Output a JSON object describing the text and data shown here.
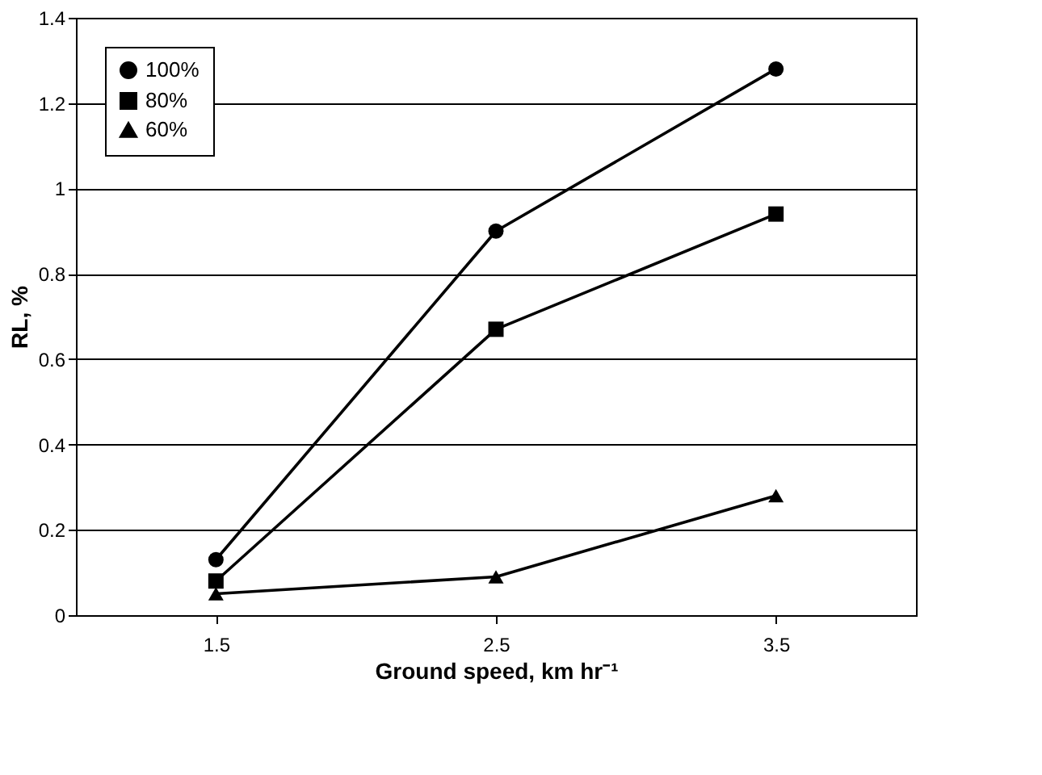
{
  "chart_data": {
    "type": "line",
    "xlabel": "Ground speed, km hr⁻¹",
    "ylabel": "RL, %",
    "categories": [
      "1.5",
      "2.5",
      "3.5"
    ],
    "series": [
      {
        "name": "100%",
        "color": "#000000",
        "marker": "circle",
        "values": [
          0.13,
          0.9,
          1.28
        ]
      },
      {
        "name": "80%",
        "color": "#000000",
        "marker": "square",
        "values": [
          0.08,
          0.67,
          0.94
        ]
      },
      {
        "name": "60%",
        "color": "#000000",
        "marker": "triangle",
        "values": [
          0.05,
          0.09,
          0.28
        ]
      }
    ],
    "ylim": [
      0,
      1.4
    ],
    "yticks": [
      0,
      0.2,
      0.4,
      0.6,
      0.8,
      1,
      1.2,
      1.4
    ],
    "grid": "y",
    "legend": "top left",
    "line_style": "solid"
  }
}
